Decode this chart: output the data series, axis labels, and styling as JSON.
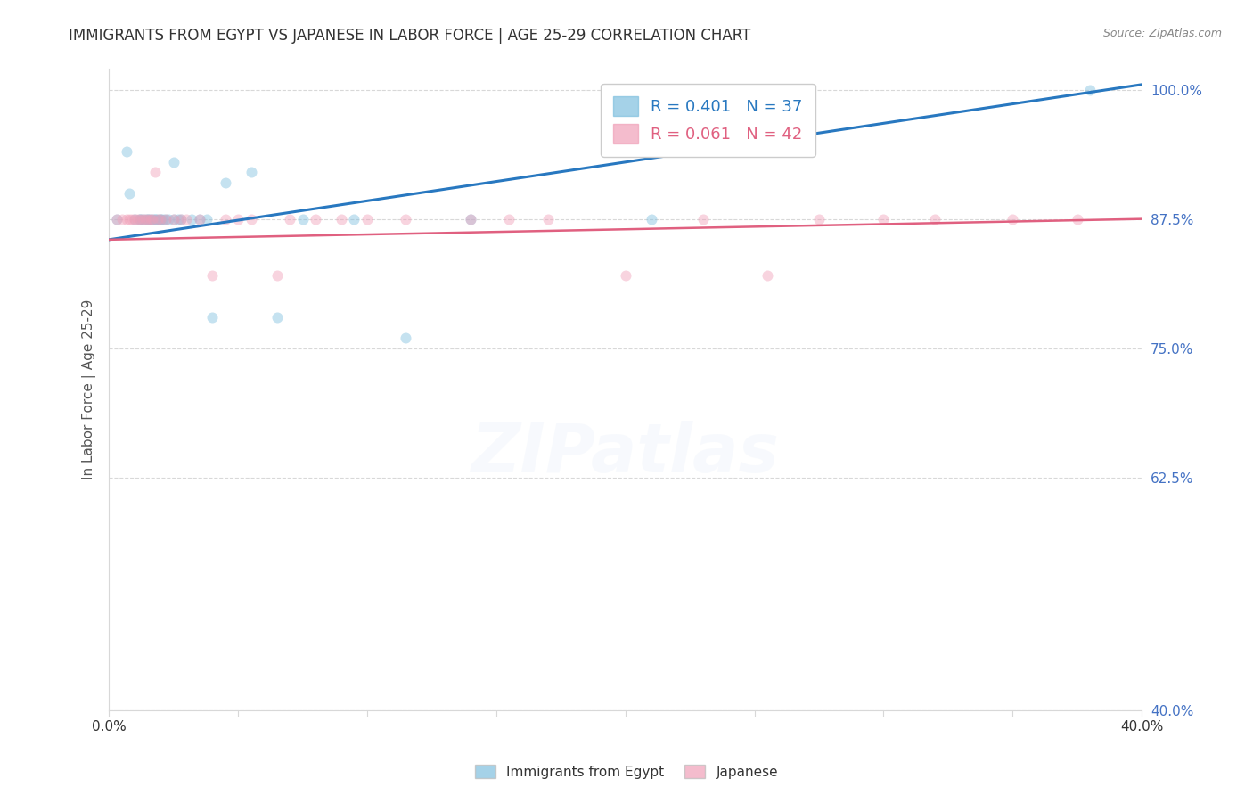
{
  "title": "IMMIGRANTS FROM EGYPT VS JAPANESE IN LABOR FORCE | AGE 25-29 CORRELATION CHART",
  "source": "Source: ZipAtlas.com",
  "ylabel": "In Labor Force | Age 25-29",
  "xlim": [
    0.0,
    0.4
  ],
  "ylim": [
    0.4,
    1.02
  ],
  "xticks": [
    0.0,
    0.05,
    0.1,
    0.15,
    0.2,
    0.25,
    0.3,
    0.35,
    0.4
  ],
  "ytick_positions": [
    0.4,
    0.625,
    0.75,
    0.875,
    1.0
  ],
  "yticklabels": [
    "40.0%",
    "62.5%",
    "75.0%",
    "87.5%",
    "100.0%"
  ],
  "egypt_R": 0.401,
  "egypt_N": 37,
  "japan_R": 0.061,
  "japan_N": 42,
  "egypt_color": "#7fbfdf",
  "egypt_line_color": "#2878c0",
  "japan_color": "#f0a0b8",
  "japan_line_color": "#e06080",
  "grid_color": "#d8d8d8",
  "title_color": "#333333",
  "axis_label_color": "#555555",
  "tick_color_x": "#333333",
  "tick_color_y": "#4472c4",
  "source_color": "#888888",
  "watermark_color": "#c8d8f0",
  "egypt_line_x0": 0.0,
  "egypt_line_y0": 0.855,
  "egypt_line_x1": 0.4,
  "egypt_line_y1": 1.005,
  "japan_line_x0": 0.0,
  "japan_line_y0": 0.855,
  "japan_line_x1": 0.4,
  "japan_line_y1": 0.875,
  "egypt_x": [
    0.003,
    0.007,
    0.008,
    0.01,
    0.012,
    0.012,
    0.013,
    0.014,
    0.015,
    0.015,
    0.016,
    0.017,
    0.018,
    0.018,
    0.019,
    0.02,
    0.02,
    0.021,
    0.022,
    0.023,
    0.025,
    0.025,
    0.027,
    0.028,
    0.032,
    0.035,
    0.038,
    0.04,
    0.045,
    0.055,
    0.065,
    0.075,
    0.095,
    0.115,
    0.14,
    0.21,
    0.38
  ],
  "egypt_y": [
    0.875,
    0.94,
    0.9,
    0.875,
    0.875,
    0.875,
    0.875,
    0.875,
    0.875,
    0.875,
    0.875,
    0.875,
    0.875,
    0.875,
    0.875,
    0.875,
    0.875,
    0.875,
    0.875,
    0.875,
    0.93,
    0.875,
    0.875,
    0.875,
    0.875,
    0.875,
    0.875,
    0.78,
    0.91,
    0.92,
    0.78,
    0.875,
    0.875,
    0.76,
    0.875,
    0.875,
    1.0
  ],
  "japan_x": [
    0.003,
    0.005,
    0.007,
    0.008,
    0.009,
    0.01,
    0.011,
    0.012,
    0.013,
    0.014,
    0.015,
    0.016,
    0.017,
    0.018,
    0.019,
    0.02,
    0.022,
    0.025,
    0.028,
    0.03,
    0.035,
    0.04,
    0.045,
    0.05,
    0.055,
    0.065,
    0.07,
    0.08,
    0.09,
    0.1,
    0.115,
    0.14,
    0.155,
    0.17,
    0.2,
    0.23,
    0.255,
    0.275,
    0.3,
    0.32,
    0.35,
    0.375
  ],
  "japan_y": [
    0.875,
    0.875,
    0.875,
    0.875,
    0.875,
    0.875,
    0.875,
    0.875,
    0.875,
    0.875,
    0.875,
    0.875,
    0.875,
    0.92,
    0.875,
    0.875,
    0.875,
    0.875,
    0.875,
    0.875,
    0.875,
    0.82,
    0.875,
    0.875,
    0.875,
    0.82,
    0.875,
    0.875,
    0.875,
    0.875,
    0.875,
    0.875,
    0.875,
    0.875,
    0.82,
    0.875,
    0.82,
    0.875,
    0.875,
    0.875,
    0.875,
    0.875
  ],
  "background_color": "#ffffff",
  "marker_size": 75,
  "marker_alpha": 0.45,
  "watermark_text": "ZIPatlas",
  "watermark_fontsize": 55,
  "watermark_alpha": 0.13
}
